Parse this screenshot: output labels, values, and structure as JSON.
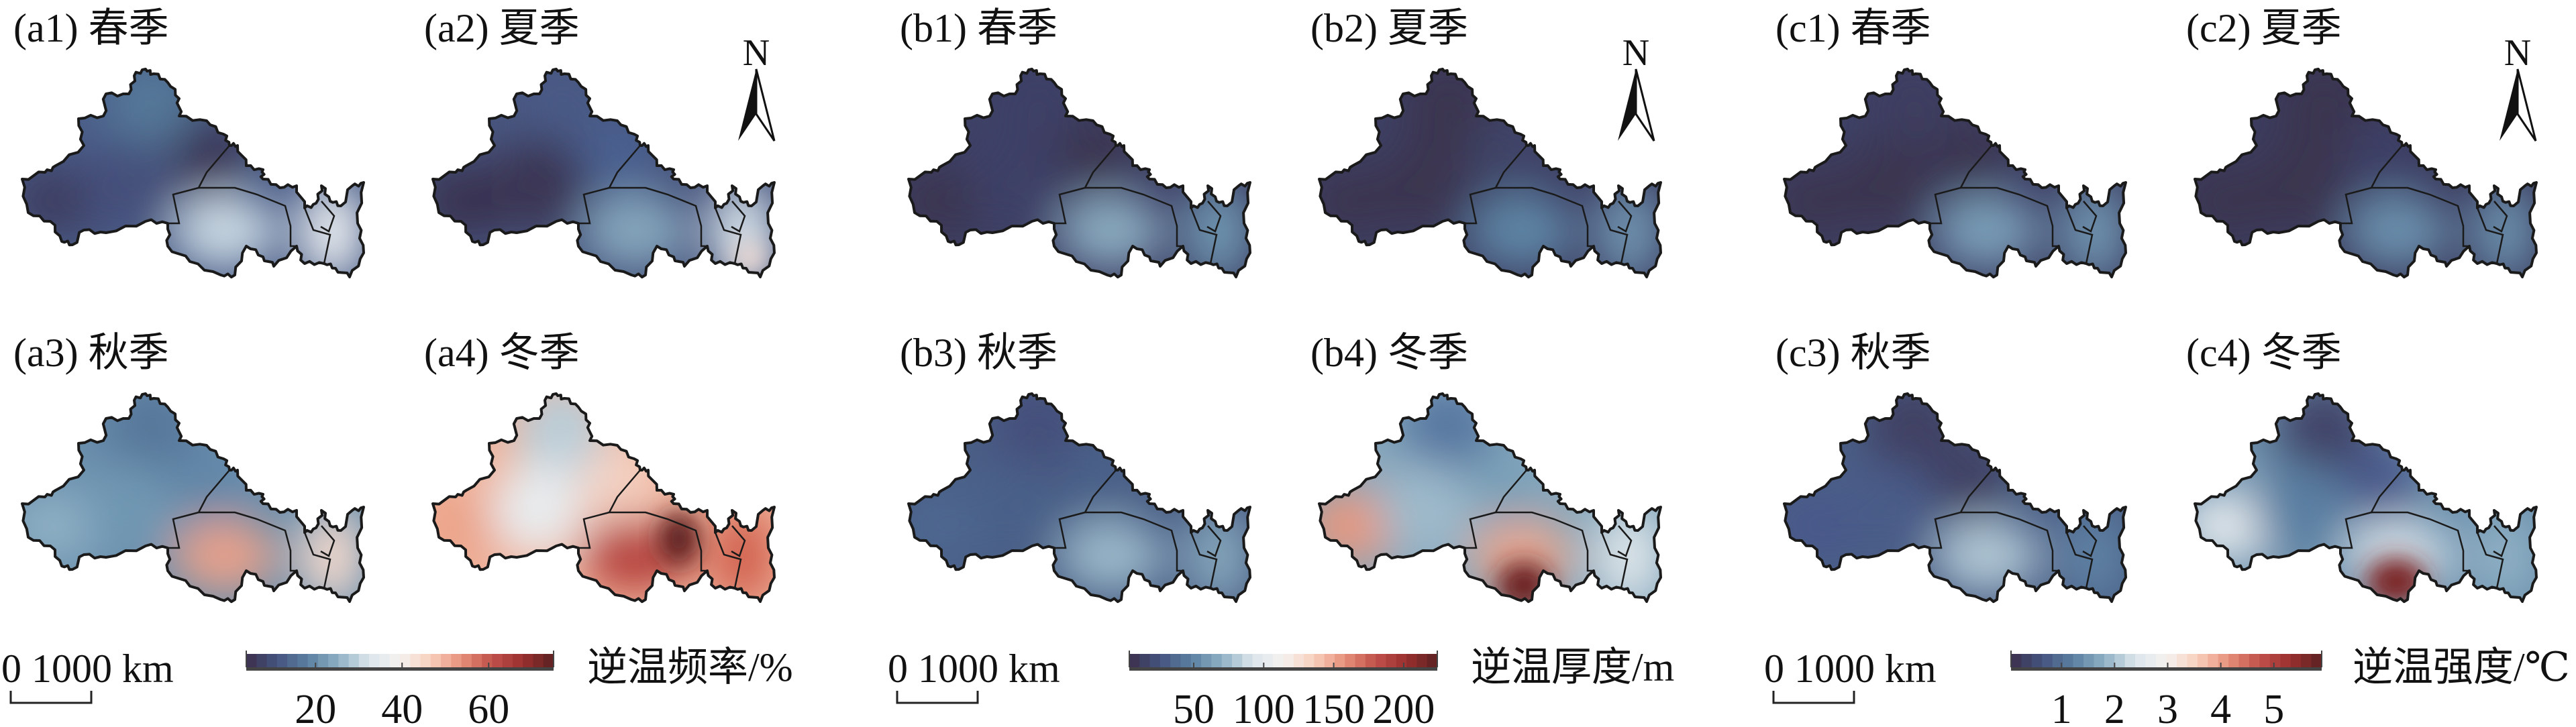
{
  "groups": [
    {
      "id": "a",
      "colorbar": {
        "title": "逆温频率/%",
        "range": [
          4,
          75
        ],
        "ticks": [
          {
            "value": 20,
            "label": "20"
          },
          {
            "value": 40,
            "label": "40"
          },
          {
            "value": 60,
            "label": "60"
          }
        ]
      },
      "scalebar": {
        "label": "0  1000 km"
      },
      "north_label": "N",
      "panels": [
        {
          "id": "a1",
          "label": "(a1) 春季",
          "colors": {
            "base": "#4a5d88",
            "north": "#557899",
            "ne": "#3a3654",
            "west": "#3e3d60",
            "center": "#44507a",
            "south": "#c9d8e2",
            "east": "#eaeef1"
          }
        },
        {
          "id": "a2",
          "label": "(a2) 夏季",
          "colors": {
            "base": "#48557e",
            "north": "#485a85",
            "ne": "#4a6090",
            "west": "#393350",
            "center": "#3b3553",
            "south": "#86a8bd",
            "east": "#d7e3ea",
            "hot": "#f3ddd5"
          }
        },
        {
          "id": "a3",
          "label": "(a3) 秋季",
          "colors": {
            "base": "#6a8fad",
            "north": "#56779a",
            "ne": "#6287a8",
            "west": "#8fb0c4",
            "center": "#7097b2",
            "south": "#e8a08a",
            "east": "#f2d8cc"
          }
        },
        {
          "id": "a4",
          "label": "(a4) 冬季",
          "colors": {
            "base": "#f0b39c",
            "north": "#b9cdd8",
            "ne": "#f4d2c3",
            "west": "#eba388",
            "center": "#e8ecef",
            "south": "#b5433c",
            "east": "#d0614e",
            "hot": "#5a1f1f"
          }
        }
      ]
    },
    {
      "id": "b",
      "colorbar": {
        "title": "逆温厚度/m",
        "range": [
          4,
          224
        ],
        "ticks": [
          {
            "value": 50,
            "label": "50"
          },
          {
            "value": 100,
            "label": "100"
          },
          {
            "value": 150,
            "label": "150"
          },
          {
            "value": 200,
            "label": "200"
          }
        ]
      },
      "scalebar": {
        "label": "0  1000 km"
      },
      "north_label": "N",
      "panels": [
        {
          "id": "b1",
          "label": "(b1) 春季",
          "colors": {
            "base": "#3e4166",
            "north": "#3e4166",
            "ne": "#3a3450",
            "west": "#3a3450",
            "center": "#3e4166",
            "south": "#8aabc0",
            "east": "#7098b2"
          }
        },
        {
          "id": "b2",
          "label": "(b2) 夏季",
          "colors": {
            "base": "#3e4166",
            "north": "#3a3450",
            "ne": "#3f4468",
            "west": "#3a3450",
            "center": "#3a3450",
            "south": "#5f86a6",
            "east": "#6f94b0"
          }
        },
        {
          "id": "b3",
          "label": "(b3) 秋季",
          "colors": {
            "base": "#4a5f86",
            "north": "#45507a",
            "ne": "#4a6088",
            "west": "#4e6890",
            "center": "#4a6088",
            "south": "#9ab8c9",
            "east": "#86a7bc"
          }
        },
        {
          "id": "b4",
          "label": "(b4) 冬季",
          "colors": {
            "base": "#86a8bd",
            "north": "#5677a0",
            "ne": "#7aa0b8",
            "west": "#e8977e",
            "center": "#9dbacb",
            "south": "#e7a68f",
            "east": "#dfe6ea",
            "hot": "#6a1f1f"
          }
        }
      ]
    },
    {
      "id": "c",
      "colorbar": {
        "title": "逆温强度/℃",
        "range": [
          0.05,
          5.9
        ],
        "ticks": [
          {
            "value": 1,
            "label": "1"
          },
          {
            "value": 2,
            "label": "2"
          },
          {
            "value": 3,
            "label": "3"
          },
          {
            "value": 4,
            "label": "4"
          },
          {
            "value": 5,
            "label": "5"
          }
        ]
      },
      "scalebar": {
        "label": "0  1000 km"
      },
      "north_label": "N",
      "panels": [
        {
          "id": "c1",
          "label": "(c1) 春季",
          "colors": {
            "base": "#3e4166",
            "north": "#3c3d60",
            "ne": "#3a3450",
            "west": "#3a3450",
            "center": "#3a3450",
            "south": "#7a9fb8",
            "east": "#6f95b0"
          }
        },
        {
          "id": "c2",
          "label": "(c2) 夏季",
          "colors": {
            "base": "#3c3d60",
            "north": "#3a3450",
            "ne": "#3e4166",
            "west": "#3a3450",
            "center": "#3a3450",
            "south": "#6a90ad",
            "east": "#6a8fac"
          }
        },
        {
          "id": "c3",
          "label": "(c3) 秋季",
          "colors": {
            "base": "#4a5f86",
            "north": "#3f4062",
            "ne": "#3f4062",
            "west": "#48588a",
            "center": "#485c88",
            "south": "#b0c7d4",
            "east": "#5e82a4"
          }
        },
        {
          "id": "c4",
          "label": "(c4) 冬季",
          "colors": {
            "base": "#6c90ad",
            "north": "#404266",
            "ne": "#48598a",
            "west": "#e2e8ec",
            "center": "#5a7fa2",
            "south": "#d1dde5",
            "east": "#8fb0c4",
            "hot": "#7a2424"
          }
        }
      ]
    }
  ],
  "colormap": [
    "#3b2f4a",
    "#455480",
    "#5a7fa0",
    "#8fb0c4",
    "#dde6ec",
    "#f5f2f0",
    "#f9d0bc",
    "#e6907a",
    "#c0504a",
    "#9a3030",
    "#5a2020"
  ],
  "outline_color": "#1a1a1a"
}
